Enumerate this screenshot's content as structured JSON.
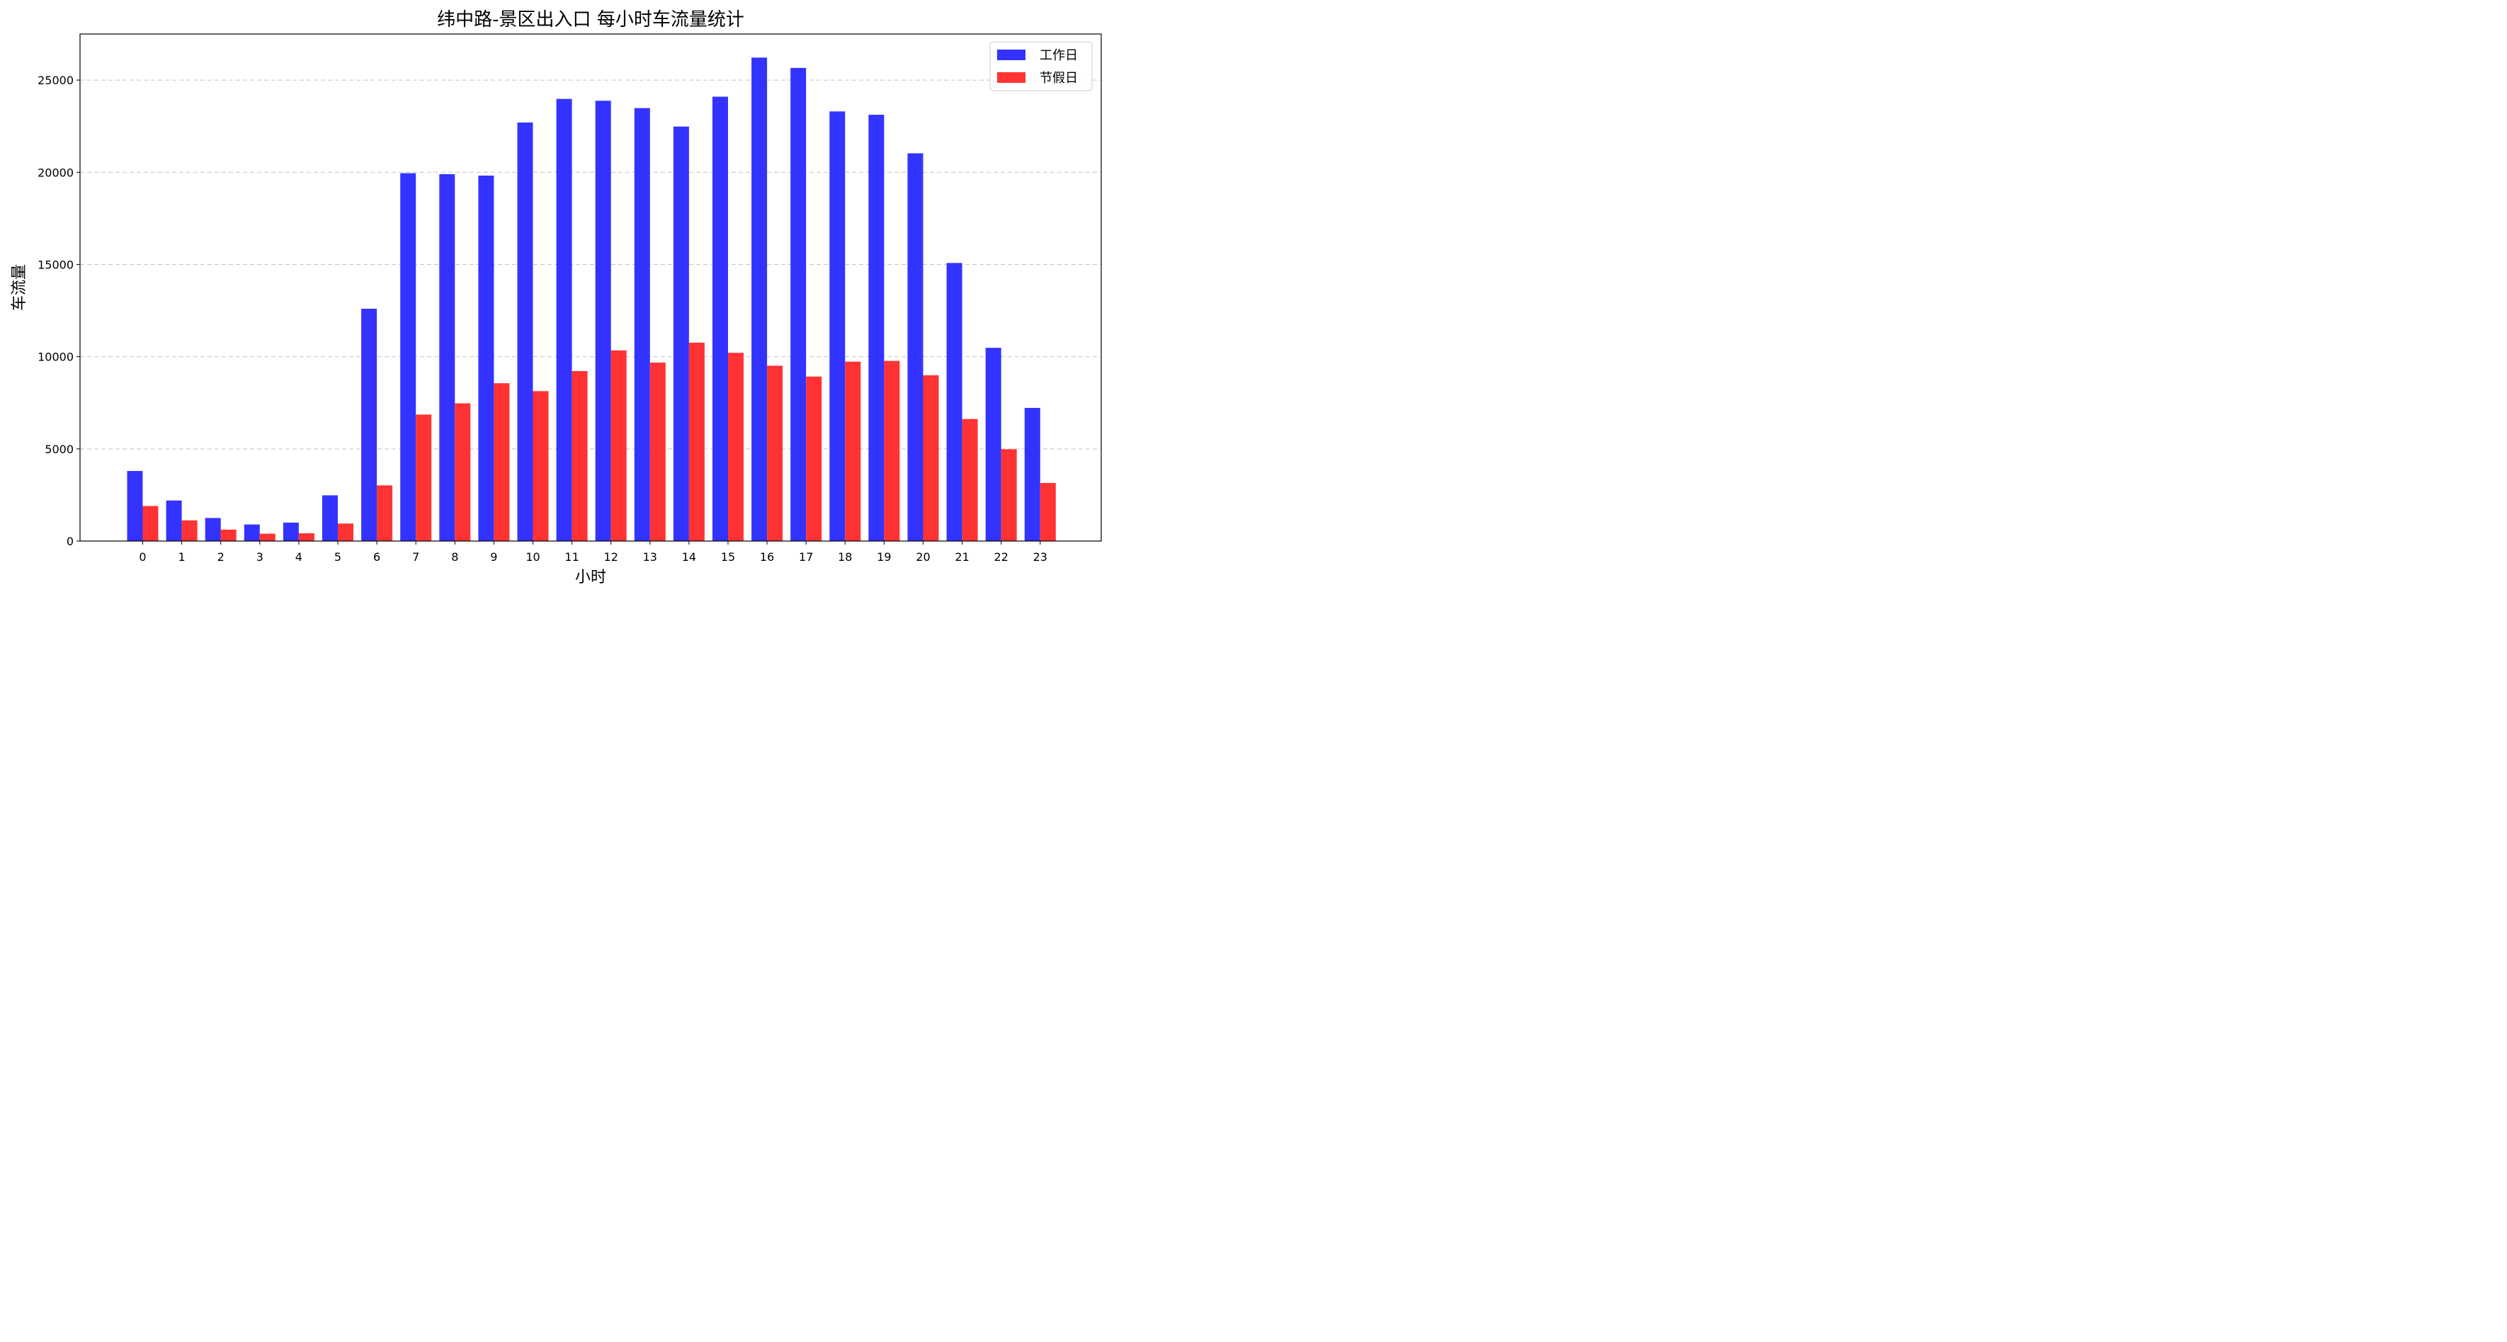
{
  "chart_data": {
    "type": "bar",
    "title": "纬中路-景区出入口 每小时车流量统计",
    "xlabel": "小时",
    "ylabel": "车流量",
    "categories": [
      "0",
      "1",
      "2",
      "3",
      "4",
      "5",
      "6",
      "7",
      "8",
      "9",
      "10",
      "11",
      "12",
      "13",
      "14",
      "15",
      "16",
      "17",
      "18",
      "19",
      "20",
      "21",
      "22",
      "23"
    ],
    "ylim": [
      0,
      27500
    ],
    "yticks": [
      0,
      5000,
      10000,
      15000,
      20000,
      25000
    ],
    "grid": "y-dashed",
    "legend_position": "top-right",
    "series": [
      {
        "name": "工作日",
        "color": "#3333ff",
        "values": [
          3800,
          2200,
          1250,
          900,
          1000,
          2480,
          12600,
          19950,
          19900,
          19820,
          22700,
          23980,
          23880,
          23480,
          22480,
          24100,
          26220,
          25660,
          23300,
          23120,
          21030,
          15080,
          10480,
          7220
        ]
      },
      {
        "name": "节假日",
        "color": "#ff3333",
        "values": [
          1900,
          1120,
          620,
          400,
          420,
          950,
          3020,
          6860,
          7470,
          8560,
          8130,
          9220,
          10340,
          9680,
          10760,
          10210,
          9510,
          8920,
          9730,
          9770,
          8990,
          6620,
          4980,
          3150
        ]
      }
    ]
  }
}
